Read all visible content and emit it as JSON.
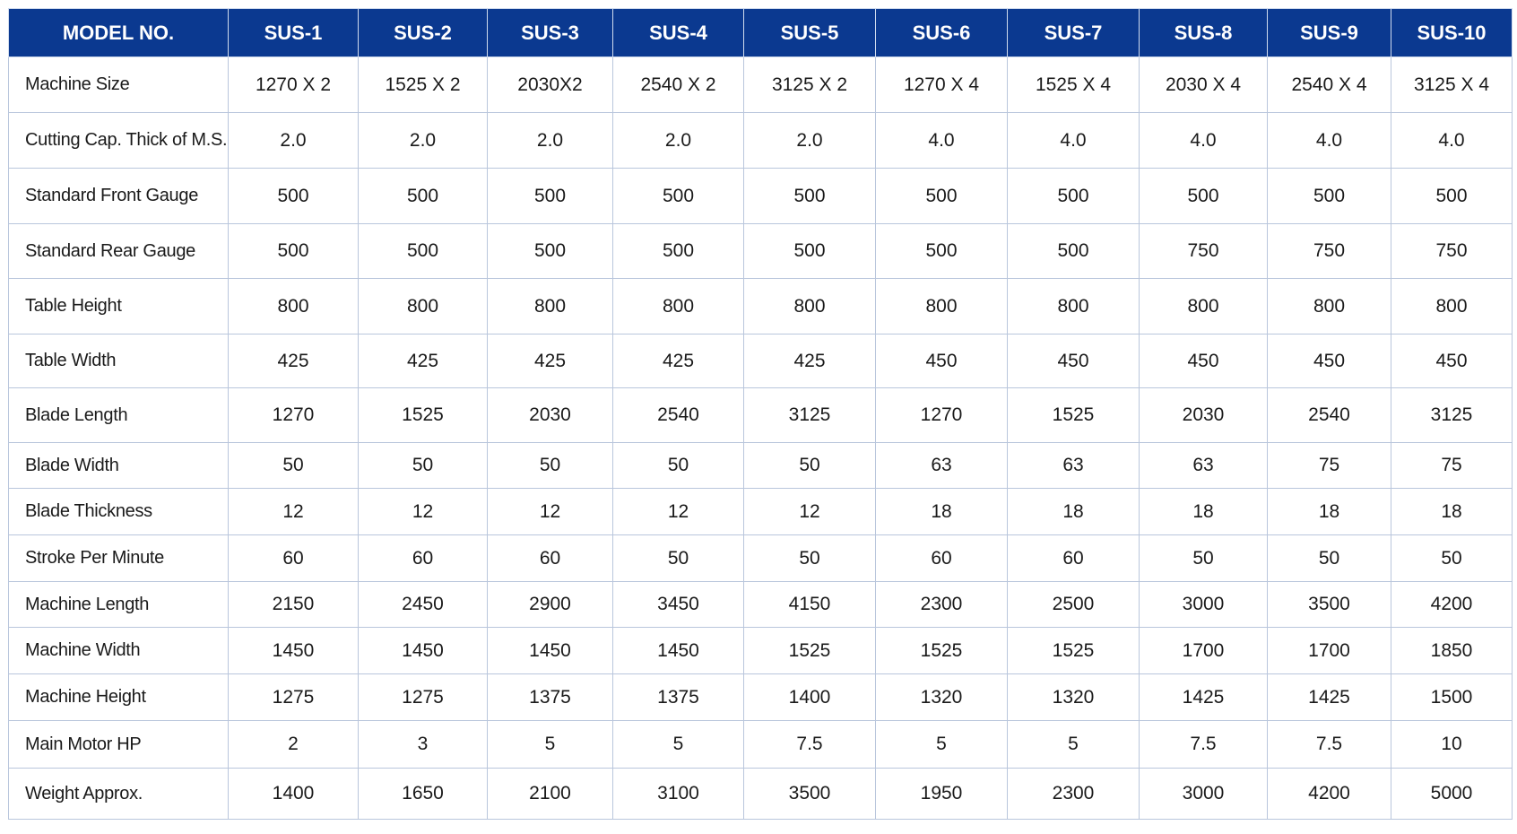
{
  "table": {
    "header": [
      "MODEL NO.",
      "SUS-1",
      "SUS-2",
      "SUS-3",
      "SUS-4",
      "SUS-5",
      "SUS-6",
      "SUS-7",
      "SUS-8",
      "SUS-9",
      "SUS-10"
    ],
    "rows": [
      [
        "Machine Size",
        "1270 X 2",
        "1525 X 2",
        "2030X2",
        "2540 X 2",
        "3125 X 2",
        "1270 X 4",
        "1525 X 4",
        "2030 X 4",
        "2540 X 4",
        "3125 X 4"
      ],
      [
        "Cutting Cap. Thick of M.S.",
        "2.0",
        "2.0",
        "2.0",
        "2.0",
        "2.0",
        "4.0",
        "4.0",
        "4.0",
        "4.0",
        "4.0"
      ],
      [
        "Standard Front Gauge",
        "500",
        "500",
        "500",
        "500",
        "500",
        "500",
        "500",
        "500",
        "500",
        "500"
      ],
      [
        "Standard Rear Gauge",
        "500",
        "500",
        "500",
        "500",
        "500",
        "500",
        "500",
        "750",
        "750",
        "750"
      ],
      [
        "Table Height",
        "800",
        "800",
        "800",
        "800",
        "800",
        "800",
        "800",
        "800",
        "800",
        "800"
      ],
      [
        "Table Width",
        "425",
        "425",
        "425",
        "425",
        "425",
        "450",
        "450",
        "450",
        "450",
        "450"
      ],
      [
        "Blade Length",
        "1270",
        "1525",
        "2030",
        "2540",
        "3125",
        "1270",
        "1525",
        "2030",
        "2540",
        "3125"
      ],
      [
        "Blade Width",
        "50",
        "50",
        "50",
        "50",
        "50",
        "63",
        "63",
        "63",
        "75",
        "75"
      ],
      [
        "Blade Thickness",
        "12",
        "12",
        "12",
        "12",
        "12",
        "18",
        "18",
        "18",
        "18",
        "18"
      ],
      [
        "Stroke Per Minute",
        "60",
        "60",
        "60",
        "50",
        "50",
        "60",
        "60",
        "50",
        "50",
        "50"
      ],
      [
        "Machine Length",
        "2150",
        "2450",
        "2900",
        "3450",
        "4150",
        "2300",
        "2500",
        "3000",
        "3500",
        "4200"
      ],
      [
        "Machine Width",
        "1450",
        "1450",
        "1450",
        "1450",
        "1525",
        "1525",
        "1525",
        "1700",
        "1700",
        "1850"
      ],
      [
        "Machine Height",
        "1275",
        "1275",
        "1375",
        "1375",
        "1400",
        "1320",
        "1320",
        "1425",
        "1425",
        "1500"
      ],
      [
        "Main Motor HP",
        "2",
        "3",
        "5",
        "5",
        "7.5",
        "5",
        "5",
        "7.5",
        "7.5",
        "10"
      ],
      [
        "Weight Approx.",
        "1400",
        "1650",
        "2100",
        "3100",
        "3500",
        "1950",
        "2300",
        "3000",
        "4200",
        "5000"
      ]
    ]
  }
}
